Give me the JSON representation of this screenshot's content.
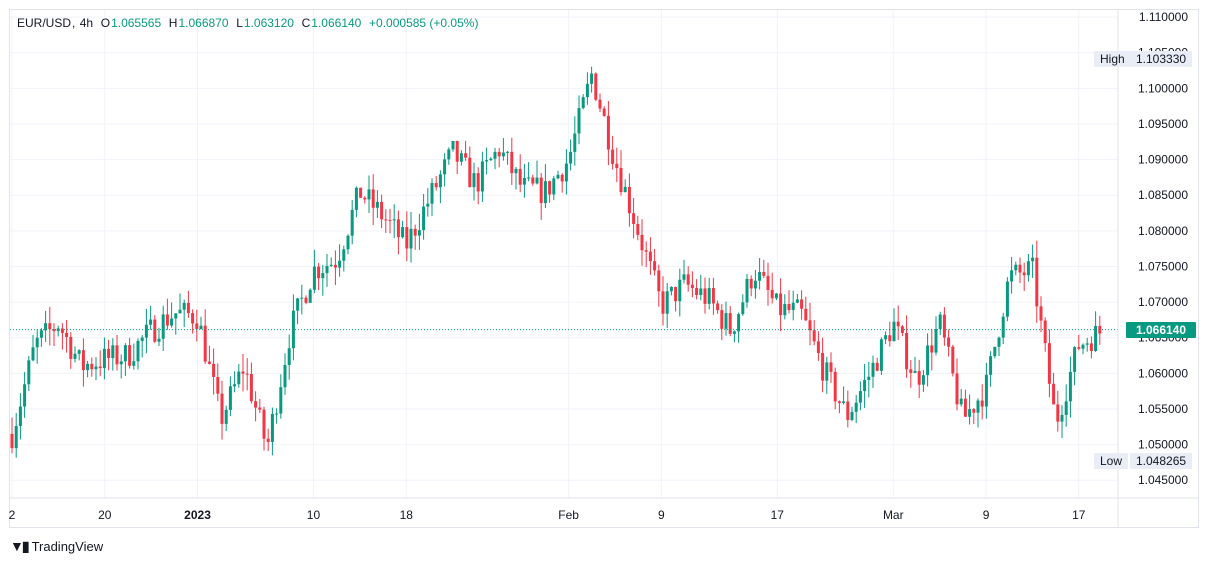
{
  "legend": {
    "symbol": "EUR/USD",
    "interval": "4h",
    "o_label": "O",
    "o_value": "1.065565",
    "h_label": "H",
    "h_value": "1.066870",
    "l_label": "L",
    "l_value": "1.063120",
    "c_label": "C",
    "c_value": "1.066140",
    "change": "+0.000585 (+0.05%)"
  },
  "markers": {
    "high_label": "High",
    "high_value": "1.103330",
    "low_label": "Low",
    "low_value": "1.048265",
    "last_price": "1.066140"
  },
  "branding": {
    "name": "TradingView"
  },
  "colors": {
    "up": "#089981",
    "down": "#f23645",
    "grid": "#f0f3fa",
    "text": "#131722"
  },
  "chart_data": {
    "type": "candlestick",
    "symbol": "EUR/USD",
    "interval": "4h",
    "y_ticks": [
      "1.045000",
      "1.050000",
      "1.055000",
      "1.060000",
      "1.065000",
      "1.070000",
      "1.075000",
      "1.080000",
      "1.085000",
      "1.090000",
      "1.095000",
      "1.100000",
      "1.105000",
      "1.110000"
    ],
    "ylim": [
      1.0425,
      1.111
    ],
    "x_ticks": [
      "2",
      "20",
      "2023",
      "10",
      "18",
      "Feb",
      "9",
      "17",
      "Mar",
      "9",
      "17"
    ],
    "high": 1.10333,
    "low": 1.048265,
    "last": 1.06614,
    "close_path": [
      {
        "label": "2",
        "value": 1.0515
      },
      {
        "label": "",
        "value": 1.064
      },
      {
        "label": "",
        "value": 1.067
      },
      {
        "label": "",
        "value": 1.061
      },
      {
        "label": "20",
        "value": 1.062
      },
      {
        "label": "",
        "value": 1.0625
      },
      {
        "label": "",
        "value": 1.066
      },
      {
        "label": "",
        "value": 1.0685
      },
      {
        "label": "2023",
        "value": 1.068
      },
      {
        "label": "",
        "value": 1.0535
      },
      {
        "label": "",
        "value": 1.061
      },
      {
        "label": "",
        "value": 1.0495
      },
      {
        "label": "",
        "value": 1.066
      },
      {
        "label": "10",
        "value": 1.0745
      },
      {
        "label": "",
        "value": 1.076
      },
      {
        "label": "",
        "value": 1.0855
      },
      {
        "label": "",
        "value": 1.082
      },
      {
        "label": "18",
        "value": 1.078
      },
      {
        "label": "",
        "value": 1.0845
      },
      {
        "label": "",
        "value": 1.091
      },
      {
        "label": "",
        "value": 1.0865
      },
      {
        "label": "",
        "value": 1.0915
      },
      {
        "label": "",
        "value": 1.086
      },
      {
        "label": "",
        "value": 1.0855
      },
      {
        "label": "Feb",
        "value": 1.09
      },
      {
        "label": "",
        "value": 1.102
      },
      {
        "label": "",
        "value": 1.09
      },
      {
        "label": "",
        "value": 1.08
      },
      {
        "label": "9",
        "value": 1.0695
      },
      {
        "label": "",
        "value": 1.0725
      },
      {
        "label": "",
        "value": 1.0705
      },
      {
        "label": "",
        "value": 1.066
      },
      {
        "label": "",
        "value": 1.0745
      },
      {
        "label": "17",
        "value": 1.069
      },
      {
        "label": "",
        "value": 1.0685
      },
      {
        "label": "",
        "value": 1.0605
      },
      {
        "label": "",
        "value": 1.054
      },
      {
        "label": "",
        "value": 1.06
      },
      {
        "label": "Mar",
        "value": 1.067
      },
      {
        "label": "",
        "value": 1.059
      },
      {
        "label": "",
        "value": 1.067
      },
      {
        "label": "",
        "value": 1.0535
      },
      {
        "label": "9",
        "value": 1.058
      },
      {
        "label": "",
        "value": 1.0735
      },
      {
        "label": "",
        "value": 1.0745
      },
      {
        "label": "",
        "value": 1.053
      },
      {
        "label": "17",
        "value": 1.064
      },
      {
        "label": "",
        "value": 1.066
      }
    ]
  }
}
